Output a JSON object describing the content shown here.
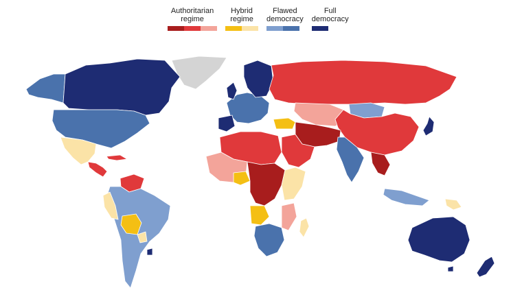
{
  "legend": [
    {
      "label": "Authoritarian\nregime",
      "colors": [
        "#a81d1d",
        "#e0393b",
        "#f3a49a"
      ]
    },
    {
      "label": "Hybrid\nregime",
      "colors": [
        "#f4bf14",
        "#fbe3a7"
      ]
    },
    {
      "label": "Flawed\ndemocracy",
      "colors": [
        "#7f9fcf",
        "#4a72ac"
      ]
    },
    {
      "label": "Full\ndemocracy",
      "colors": [
        "#1e2c73"
      ]
    }
  ],
  "colors": {
    "auth_dark": "#a81d1d",
    "auth_mid": "#e0393b",
    "auth_light": "#f3a49a",
    "hybrid_dark": "#f4bf14",
    "hybrid_light": "#fbe3a7",
    "flawed_light": "#7f9fcf",
    "flawed_dark": "#4a72ac",
    "full": "#1e2c73",
    "no_data": "#d4d4d4"
  }
}
